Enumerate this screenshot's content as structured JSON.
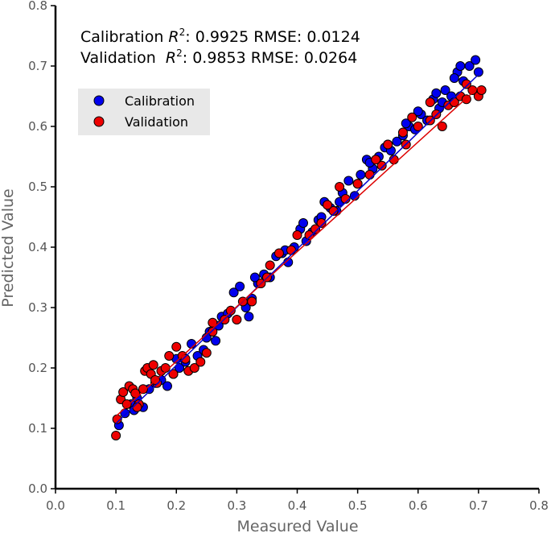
{
  "chart_data": {
    "type": "scatter",
    "xlabel": "Measured Value",
    "ylabel": "Predicted Value",
    "xlim": [
      0.0,
      0.8
    ],
    "ylim": [
      0.0,
      0.8
    ],
    "xticks": [
      "0.0",
      "0.1",
      "0.2",
      "0.3",
      "0.4",
      "0.5",
      "0.6",
      "0.7",
      "0.8"
    ],
    "yticks": [
      "0.0",
      "0.1",
      "0.2",
      "0.3",
      "0.4",
      "0.5",
      "0.6",
      "0.7",
      "0.8"
    ],
    "grid": false,
    "legend_position": "upper-left",
    "annotations": {
      "calibration_prefix": "Calibration ",
      "calibration_stats": ": 0.9925 RMSE: 0.0124",
      "validation_prefix": "Validation  ",
      "validation_stats": ": 0.9853 RMSE: 0.0264",
      "r_symbol": "R",
      "r_exponent": "2"
    },
    "series": [
      {
        "name": "Calibration",
        "color": "#0000ee",
        "fit_line": [
          [
            0.1,
            0.108
          ],
          [
            0.7,
            0.686
          ]
        ],
        "points": [
          [
            0.105,
            0.105
          ],
          [
            0.115,
            0.125
          ],
          [
            0.125,
            0.14
          ],
          [
            0.135,
            0.15
          ],
          [
            0.145,
            0.135
          ],
          [
            0.155,
            0.165
          ],
          [
            0.165,
            0.175
          ],
          [
            0.175,
            0.18
          ],
          [
            0.185,
            0.17
          ],
          [
            0.195,
            0.19
          ],
          [
            0.205,
            0.2
          ],
          [
            0.215,
            0.21
          ],
          [
            0.225,
            0.24
          ],
          [
            0.235,
            0.22
          ],
          [
            0.245,
            0.23
          ],
          [
            0.255,
            0.26
          ],
          [
            0.265,
            0.245
          ],
          [
            0.275,
            0.285
          ],
          [
            0.285,
            0.29
          ],
          [
            0.295,
            0.325
          ],
          [
            0.305,
            0.335
          ],
          [
            0.315,
            0.3
          ],
          [
            0.325,
            0.315
          ],
          [
            0.335,
            0.34
          ],
          [
            0.345,
            0.355
          ],
          [
            0.355,
            0.35
          ],
          [
            0.365,
            0.385
          ],
          [
            0.375,
            0.39
          ],
          [
            0.385,
            0.375
          ],
          [
            0.395,
            0.4
          ],
          [
            0.405,
            0.43
          ],
          [
            0.415,
            0.41
          ],
          [
            0.425,
            0.425
          ],
          [
            0.435,
            0.445
          ],
          [
            0.445,
            0.475
          ],
          [
            0.455,
            0.465
          ],
          [
            0.465,
            0.46
          ],
          [
            0.475,
            0.49
          ],
          [
            0.485,
            0.51
          ],
          [
            0.495,
            0.485
          ],
          [
            0.505,
            0.52
          ],
          [
            0.515,
            0.545
          ],
          [
            0.525,
            0.53
          ],
          [
            0.535,
            0.55
          ],
          [
            0.545,
            0.565
          ],
          [
            0.555,
            0.56
          ],
          [
            0.565,
            0.575
          ],
          [
            0.575,
            0.585
          ],
          [
            0.585,
            0.6
          ],
          [
            0.595,
            0.595
          ],
          [
            0.605,
            0.62
          ],
          [
            0.615,
            0.61
          ],
          [
            0.625,
            0.645
          ],
          [
            0.635,
            0.63
          ],
          [
            0.645,
            0.66
          ],
          [
            0.655,
            0.65
          ],
          [
            0.665,
            0.69
          ],
          [
            0.675,
            0.675
          ],
          [
            0.685,
            0.7
          ],
          [
            0.695,
            0.71
          ],
          [
            0.66,
            0.68
          ],
          [
            0.64,
            0.64
          ],
          [
            0.58,
            0.605
          ],
          [
            0.52,
            0.54
          ],
          [
            0.44,
            0.45
          ],
          [
            0.38,
            0.395
          ],
          [
            0.33,
            0.35
          ],
          [
            0.25,
            0.25
          ],
          [
            0.2,
            0.215
          ],
          [
            0.13,
            0.13
          ],
          [
            0.32,
            0.285
          ],
          [
            0.27,
            0.27
          ],
          [
            0.47,
            0.475
          ],
          [
            0.55,
            0.57
          ],
          [
            0.6,
            0.625
          ],
          [
            0.67,
            0.7
          ],
          [
            0.7,
            0.69
          ],
          [
            0.63,
            0.655
          ],
          [
            0.5,
            0.505
          ],
          [
            0.41,
            0.44
          ]
        ]
      },
      {
        "name": "Validation",
        "color": "#ee0000",
        "fit_line": [
          [
            0.1,
            0.12
          ],
          [
            0.7,
            0.665
          ]
        ],
        "points": [
          [
            0.1,
            0.088
          ],
          [
            0.102,
            0.115
          ],
          [
            0.108,
            0.148
          ],
          [
            0.112,
            0.16
          ],
          [
            0.118,
            0.14
          ],
          [
            0.122,
            0.17
          ],
          [
            0.128,
            0.165
          ],
          [
            0.132,
            0.158
          ],
          [
            0.138,
            0.14
          ],
          [
            0.145,
            0.165
          ],
          [
            0.148,
            0.195
          ],
          [
            0.152,
            0.2
          ],
          [
            0.158,
            0.19
          ],
          [
            0.162,
            0.205
          ],
          [
            0.168,
            0.175
          ],
          [
            0.175,
            0.195
          ],
          [
            0.182,
            0.2
          ],
          [
            0.188,
            0.22
          ],
          [
            0.195,
            0.19
          ],
          [
            0.2,
            0.235
          ],
          [
            0.21,
            0.22
          ],
          [
            0.22,
            0.195
          ],
          [
            0.23,
            0.2
          ],
          [
            0.24,
            0.21
          ],
          [
            0.25,
            0.225
          ],
          [
            0.26,
            0.275
          ],
          [
            0.28,
            0.28
          ],
          [
            0.29,
            0.295
          ],
          [
            0.3,
            0.28
          ],
          [
            0.31,
            0.31
          ],
          [
            0.325,
            0.31
          ],
          [
            0.34,
            0.34
          ],
          [
            0.355,
            0.37
          ],
          [
            0.37,
            0.39
          ],
          [
            0.39,
            0.395
          ],
          [
            0.4,
            0.42
          ],
          [
            0.42,
            0.42
          ],
          [
            0.44,
            0.44
          ],
          [
            0.46,
            0.46
          ],
          [
            0.48,
            0.48
          ],
          [
            0.5,
            0.505
          ],
          [
            0.52,
            0.52
          ],
          [
            0.54,
            0.535
          ],
          [
            0.56,
            0.545
          ],
          [
            0.58,
            0.57
          ],
          [
            0.6,
            0.6
          ],
          [
            0.62,
            0.61
          ],
          [
            0.64,
            0.6
          ],
          [
            0.65,
            0.635
          ],
          [
            0.66,
            0.64
          ],
          [
            0.67,
            0.65
          ],
          [
            0.68,
            0.645
          ],
          [
            0.69,
            0.66
          ],
          [
            0.7,
            0.65
          ],
          [
            0.705,
            0.66
          ],
          [
            0.59,
            0.615
          ],
          [
            0.63,
            0.62
          ],
          [
            0.55,
            0.57
          ],
          [
            0.47,
            0.5
          ],
          [
            0.43,
            0.43
          ],
          [
            0.35,
            0.35
          ],
          [
            0.26,
            0.26
          ],
          [
            0.215,
            0.215
          ],
          [
            0.165,
            0.18
          ],
          [
            0.135,
            0.135
          ],
          [
            0.62,
            0.64
          ],
          [
            0.68,
            0.67
          ],
          [
            0.45,
            0.47
          ],
          [
            0.53,
            0.545
          ],
          [
            0.575,
            0.59
          ]
        ]
      }
    ]
  }
}
